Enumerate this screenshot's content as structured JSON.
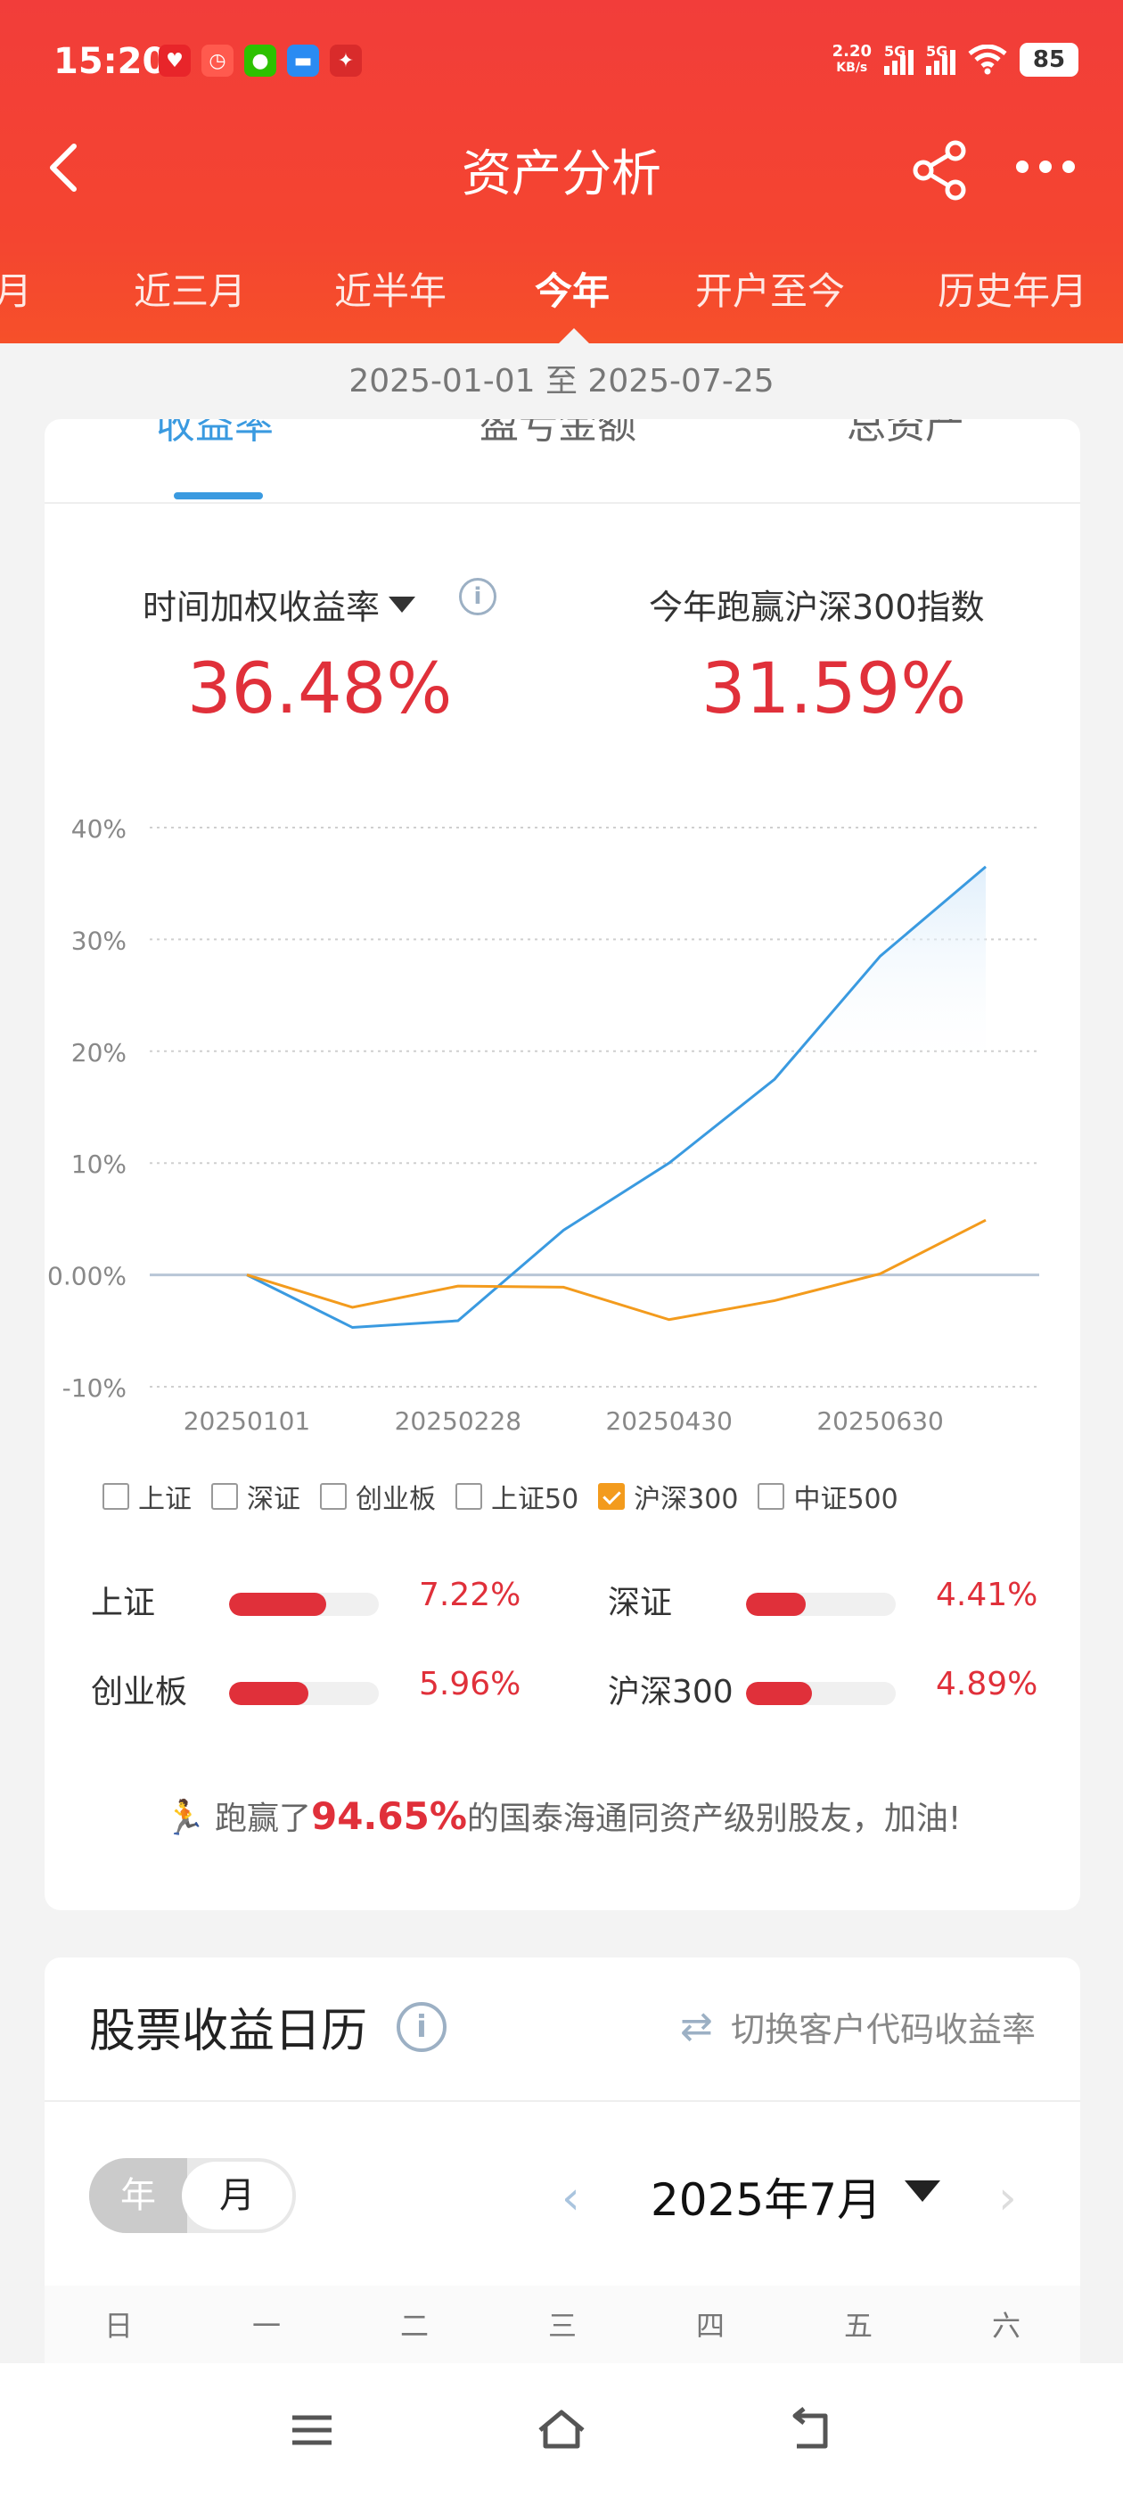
{
  "status_bar": {
    "time": "15:20",
    "net_speed_value": "2.20",
    "net_speed_unit": "KB/s",
    "sim1": "5G",
    "sim2": "5G",
    "battery": "85"
  },
  "nav": {
    "title": "资产分析"
  },
  "period_tabs": [
    "一月",
    "近三月",
    "近半年",
    "今年",
    "开户至今",
    "历史年月"
  ],
  "active_period": "今年",
  "date_range": "2025-01-01 至 2025-07-25",
  "sub_tabs": [
    "收益率",
    "盈亏金额",
    "总资产"
  ],
  "metric_left_label": "时间加权收益率",
  "metric_left_value": "36.48%",
  "metric_right_label": "今年跑赢沪深300指数",
  "metric_right_value": "31.59%",
  "chart_data": {
    "type": "line",
    "x": [
      "20250101",
      "20250131",
      "20250228",
      "20250331",
      "20250430",
      "20250531",
      "20250630",
      "20250725"
    ],
    "x_ticks": [
      "20250101",
      "20250228",
      "20250430",
      "20250630"
    ],
    "y_ticks": [
      "40%",
      "30%",
      "20%",
      "10%",
      "0.00%",
      "-10%"
    ],
    "ylim": [
      -10,
      40
    ],
    "series": [
      {
        "name": "收益率",
        "color": "#3a9ae0",
        "values": [
          0,
          -4.7,
          -4.1,
          4.0,
          10.0,
          17.5,
          28.5,
          36.5
        ]
      },
      {
        "name": "沪深300",
        "color": "#f39b1d",
        "values": [
          0,
          -2.9,
          -1.0,
          -1.1,
          -4.0,
          -2.3,
          0.1,
          4.9
        ]
      }
    ],
    "grid": true
  },
  "legend": [
    {
      "label": "上证",
      "checked": false
    },
    {
      "label": "深证",
      "checked": false
    },
    {
      "label": "创业板",
      "checked": false
    },
    {
      "label": "上证50",
      "checked": false
    },
    {
      "label": "沪深300",
      "checked": true
    },
    {
      "label": "中证500",
      "checked": false
    }
  ],
  "indices": [
    {
      "name": "上证",
      "value": "7.22%",
      "fill": 0.65
    },
    {
      "name": "深证",
      "value": "4.41%",
      "fill": 0.4
    },
    {
      "name": "创业板",
      "value": "5.96%",
      "fill": 0.53
    },
    {
      "name": "沪深300",
      "value": "4.89%",
      "fill": 0.44
    }
  ],
  "beat": {
    "prefix": "跑赢了",
    "percent": "94.65%",
    "suffix": "的国泰海通同资产级别股友，加油!"
  },
  "calendar": {
    "title": "股票收益日历",
    "switch_label": "切换客户代码收益率",
    "toggle_year": "年",
    "toggle_month": "月",
    "month_label": "2025年7月",
    "weekdays": [
      "日",
      "一",
      "二",
      "三",
      "四",
      "五",
      "六"
    ]
  },
  "colors": {
    "brand_red": "#f23d3a",
    "accent_blue": "#3a9ae0",
    "accent_orange": "#f39b1d",
    "value_red": "#e0303a"
  }
}
